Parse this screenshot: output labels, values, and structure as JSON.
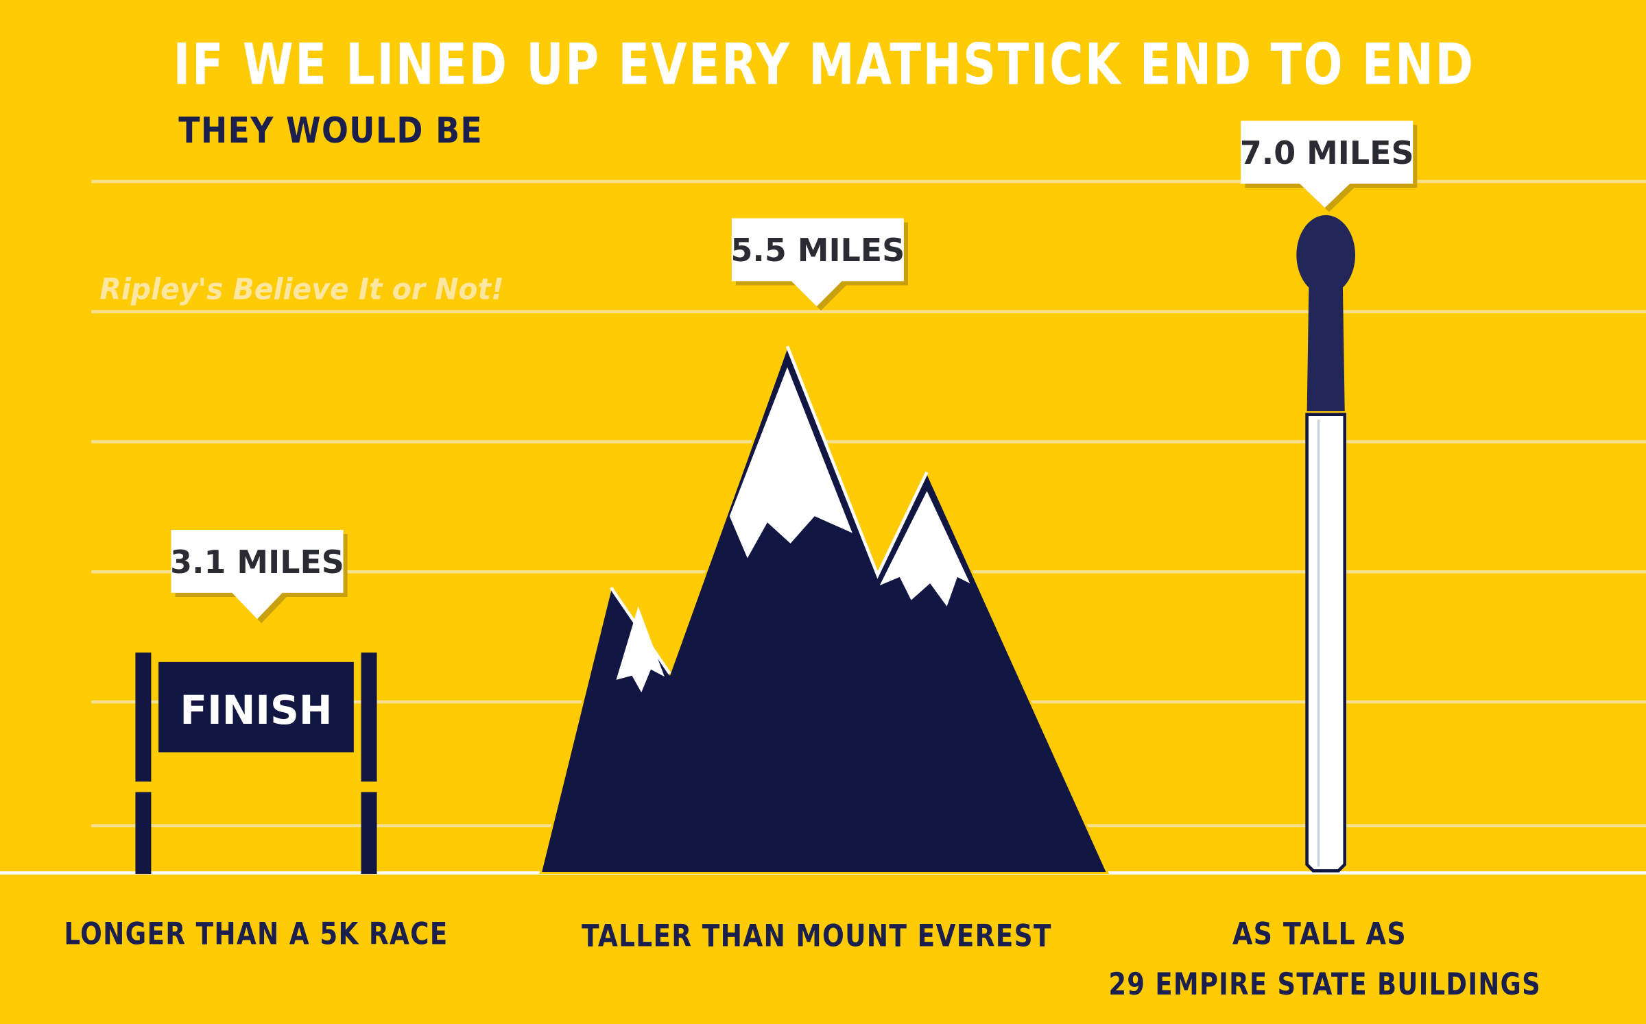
{
  "header": {
    "title": "IF WE LINED UP EVERY MATHSTICK END TO END",
    "subtitle": "THEY WOULD BE"
  },
  "brand": "Ripley's Believe It or Not!",
  "finish_sign": "FINISH",
  "items": [
    {
      "value_label": "3.1 MILES",
      "caption_lines": [
        "LONGER THAN A 5K RACE"
      ]
    },
    {
      "value_label": "5.5 MILES",
      "caption_lines": [
        "TALLER THAN MOUNT EVEREST"
      ]
    },
    {
      "value_label": "7.0 MILES",
      "caption_lines": [
        "AS TALL AS",
        "29 EMPIRE STATE BUILDINGS"
      ]
    }
  ]
}
